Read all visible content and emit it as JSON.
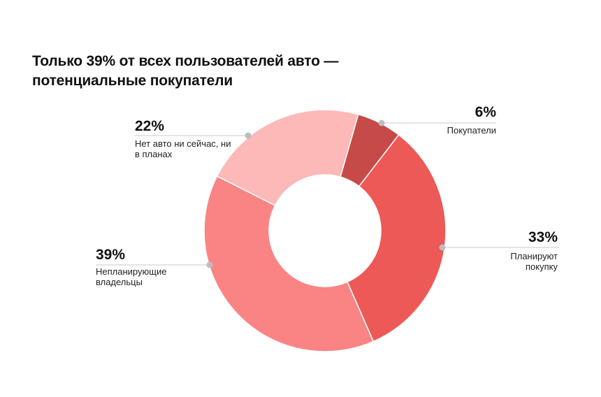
{
  "chart_data": {
    "type": "pie",
    "title": "Только 39% от всех пользователей авто — потенциальные покупатели",
    "slices": [
      {
        "label": "Покупатели",
        "value": 6,
        "value_label": "6%",
        "color": "#C64A48"
      },
      {
        "label": "Планируют покупку",
        "value": 33,
        "value_label": "33%",
        "color": "#EC5956"
      },
      {
        "label": "Непланирующие владельцы",
        "value": 39,
        "value_label": "39%",
        "color": "#FA8484"
      },
      {
        "label": "Нет авто ни сейчас, ни в планах",
        "value": 22,
        "value_label": "22%",
        "color": "#FDB8B8"
      }
    ],
    "donut": true,
    "start_angle_deg": 16
  }
}
